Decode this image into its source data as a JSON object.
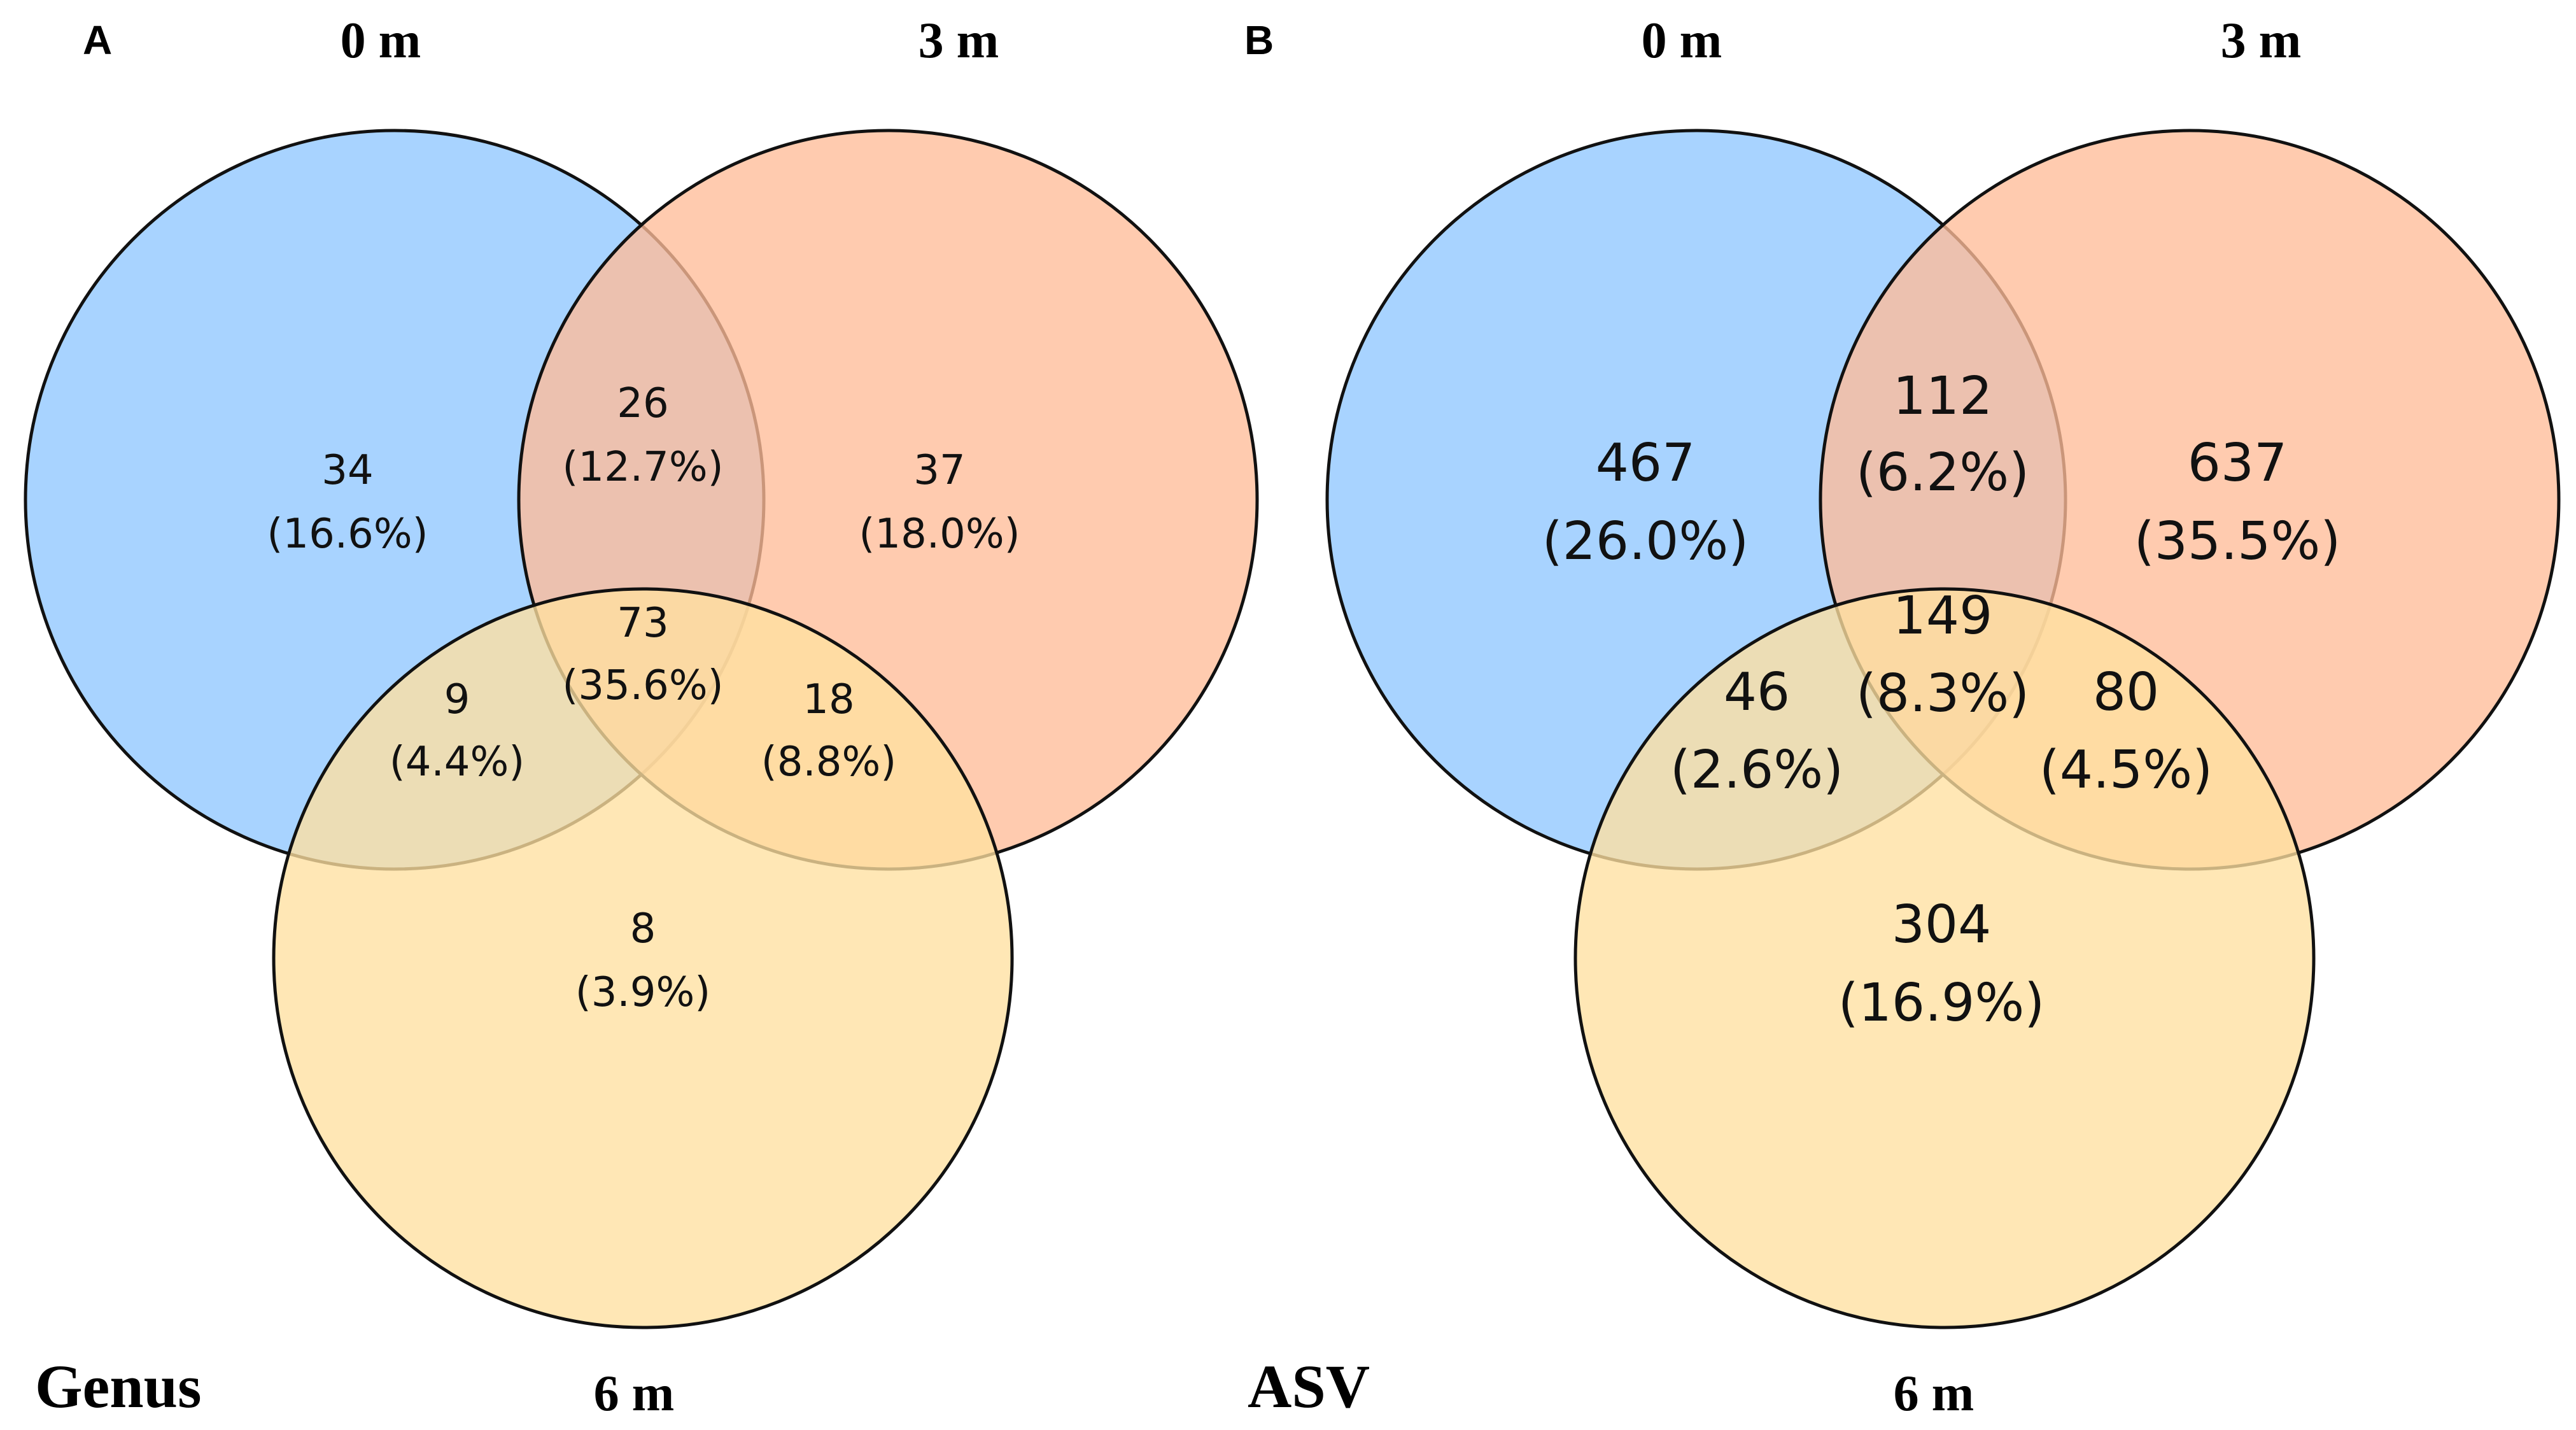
{
  "colors": {
    "set_0m": "#8fc6ff",
    "set_3m": "#ffbd99",
    "set_6m": "#ffe0a0",
    "stroke": "#111111"
  },
  "chart_data": [
    {
      "type": "venn",
      "panel": "A",
      "label": "Genus",
      "sets": [
        "0 m",
        "3 m",
        "6 m"
      ],
      "regions": [
        {
          "id": "only_0m",
          "sets": [
            "0 m"
          ],
          "count": "34",
          "percent": "(16.6%)"
        },
        {
          "id": "only_3m",
          "sets": [
            "3 m"
          ],
          "count": "37",
          "percent": "(18.0%)"
        },
        {
          "id": "only_6m",
          "sets": [
            "6 m"
          ],
          "count": "8",
          "percent": "(3.9%)"
        },
        {
          "id": "0m_3m",
          "sets": [
            "0 m",
            "3 m"
          ],
          "count": "26",
          "percent": "(12.7%)"
        },
        {
          "id": "0m_6m",
          "sets": [
            "0 m",
            "6 m"
          ],
          "count": "9",
          "percent": "(4.4%)"
        },
        {
          "id": "3m_6m",
          "sets": [
            "3 m",
            "6 m"
          ],
          "count": "18",
          "percent": "(8.8%)"
        },
        {
          "id": "all",
          "sets": [
            "0 m",
            "3 m",
            "6 m"
          ],
          "count": "73",
          "percent": "(35.6%)"
        }
      ]
    },
    {
      "type": "venn",
      "panel": "B",
      "label": "ASV",
      "sets": [
        "0 m",
        "3 m",
        "6 m"
      ],
      "regions": [
        {
          "id": "only_0m",
          "sets": [
            "0 m"
          ],
          "count": "467",
          "percent": "(26.0%)"
        },
        {
          "id": "only_3m",
          "sets": [
            "3 m"
          ],
          "count": "637",
          "percent": "(35.5%)"
        },
        {
          "id": "only_6m",
          "sets": [
            "6 m"
          ],
          "count": "304",
          "percent": "(16.9%)"
        },
        {
          "id": "0m_3m",
          "sets": [
            "0 m",
            "3 m"
          ],
          "count": "112",
          "percent": "(6.2%)"
        },
        {
          "id": "0m_6m",
          "sets": [
            "0 m",
            "6 m"
          ],
          "count": "46",
          "percent": "(2.6%)"
        },
        {
          "id": "3m_6m",
          "sets": [
            "3 m",
            "6 m"
          ],
          "count": "80",
          "percent": "(4.5%)"
        },
        {
          "id": "all",
          "sets": [
            "0 m",
            "3 m",
            "6 m"
          ],
          "count": "149",
          "percent": "(8.3%)"
        }
      ]
    }
  ]
}
